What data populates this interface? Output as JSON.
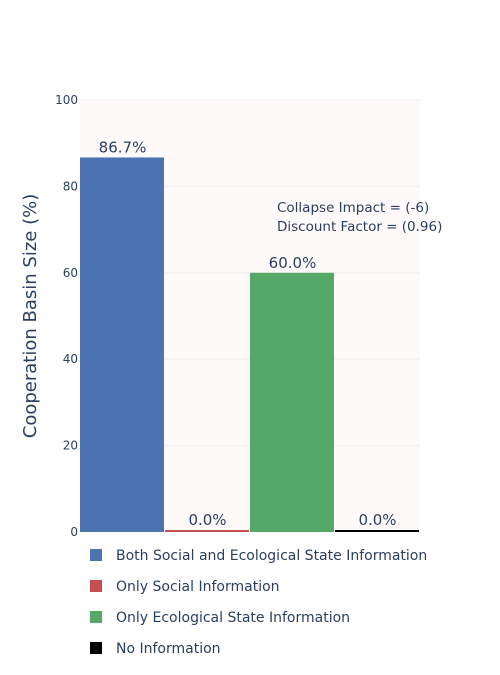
{
  "chart_data": {
    "type": "bar",
    "title": "",
    "xlabel": "",
    "ylabel": "Cooperation Basin Size (%)",
    "ylim": [
      0,
      100
    ],
    "yticks": [
      0,
      20,
      40,
      60,
      80,
      100
    ],
    "grid": true,
    "legend_position": "bottom",
    "categories": [
      "Both Social and Ecological State Information",
      "Only Social Information",
      "Only Ecological State Information",
      "No Information"
    ],
    "values": [
      86.7,
      0.0,
      60.0,
      0.0
    ],
    "data_labels": [
      "86.7%",
      "0.0%",
      "60.0%",
      "0.0%"
    ],
    "colors": [
      "#4c72b0",
      "#c44e52",
      "#55a868",
      "#000000"
    ],
    "annotations": [
      "Collapse Impact = (-6)",
      "Discount Factor = (0.96)"
    ],
    "plot_background": "#fffafa"
  }
}
